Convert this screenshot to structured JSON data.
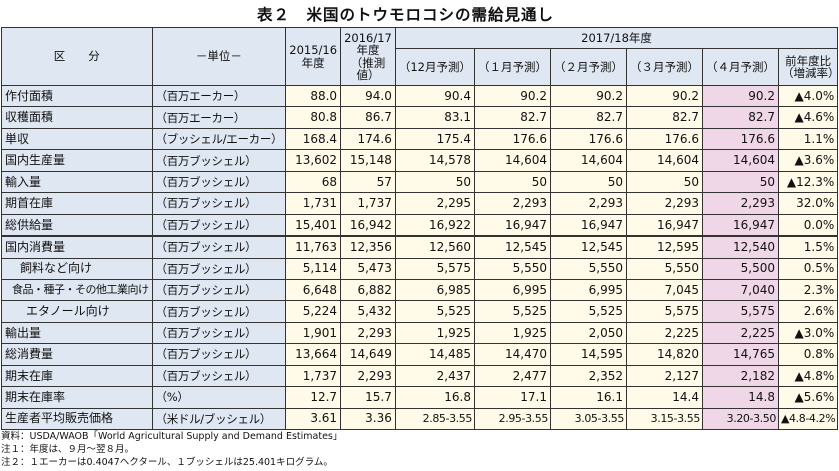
{
  "title": "表２　米国のトウモロコシの需給見通し",
  "header": {
    "category": "区　　分",
    "unit": "－単位－",
    "col1": "2015/16\n年度",
    "col2": "2016/17\n年度\n（推測値）",
    "forecast_group": "2017/18年度",
    "f1": "（12月予測）",
    "f2": "（１月予測）",
    "f3": "（２月予測）",
    "f4": "（３月予測）",
    "f5": "（４月予測）",
    "yoy": "前年度比\n（増減率）"
  },
  "rows": [
    {
      "item": "作付面積",
      "unit": "（百万エーカー）",
      "v": [
        "88.0",
        "94.0",
        "90.4",
        "90.2",
        "90.2",
        "90.2",
        "90.2"
      ],
      "chg": "▲4.0%"
    },
    {
      "item": "収穫面積",
      "unit": "（百万エーカー）",
      "v": [
        "80.8",
        "86.7",
        "83.1",
        "82.7",
        "82.7",
        "82.7",
        "82.7"
      ],
      "chg": "▲4.6%"
    },
    {
      "item": "単収",
      "unit": "（ブッシェル/エーカー）",
      "v": [
        "168.4",
        "174.6",
        "175.4",
        "176.6",
        "176.6",
        "176.6",
        "176.6"
      ],
      "chg": "1.1%"
    },
    {
      "item": "国内生産量",
      "unit": "（百万ブッシェル）",
      "v": [
        "13,602",
        "15,148",
        "14,578",
        "14,604",
        "14,604",
        "14,604",
        "14,604"
      ],
      "chg": "▲3.6%"
    },
    {
      "item": "輸入量",
      "unit": "（百万ブッシェル）",
      "v": [
        "68",
        "57",
        "50",
        "50",
        "50",
        "50",
        "50"
      ],
      "chg": "▲12.3%"
    },
    {
      "item": "期首在庫",
      "unit": "（百万ブッシェル）",
      "v": [
        "1,731",
        "1,737",
        "2,295",
        "2,293",
        "2,293",
        "2,293",
        "2,293"
      ],
      "chg": "32.0%"
    },
    {
      "item": "総供給量",
      "unit": "（百万ブッシェル）",
      "v": [
        "15,401",
        "16,942",
        "16,922",
        "16,947",
        "16,947",
        "16,947",
        "16,947"
      ],
      "chg": "0.0%"
    },
    {
      "item": "国内消費量",
      "unit": "（百万ブッシェル）",
      "v": [
        "11,763",
        "12,356",
        "12,560",
        "12,545",
        "12,545",
        "12,595",
        "12,540"
      ],
      "chg": "1.5%"
    },
    {
      "item": "飼料など向け",
      "unit": "（百万ブッシェル）",
      "v": [
        "5,114",
        "5,473",
        "5,575",
        "5,550",
        "5,550",
        "5,550",
        "5,500"
      ],
      "chg": "0.5%"
    },
    {
      "item": "食品・種子・その他工業向け",
      "unit": "（百万ブッシェル）",
      "v": [
        "6,648",
        "6,882",
        "6,985",
        "6,995",
        "6,995",
        "7,045",
        "7,040"
      ],
      "chg": "2.3%"
    },
    {
      "item": "エタノール向け",
      "unit": "（百万ブッシェル）",
      "v": [
        "5,224",
        "5,432",
        "5,525",
        "5,525",
        "5,525",
        "5,575",
        "5,575"
      ],
      "chg": "2.6%"
    },
    {
      "item": "輸出量",
      "unit": "（百万ブッシェル）",
      "v": [
        "1,901",
        "2,293",
        "1,925",
        "1,925",
        "2,050",
        "2,225",
        "2,225"
      ],
      "chg": "▲3.0%"
    },
    {
      "item": "総消費量",
      "unit": "（百万ブッシェル）",
      "v": [
        "13,664",
        "14,649",
        "14,485",
        "14,470",
        "14,595",
        "14,820",
        "14,765"
      ],
      "chg": "0.8%"
    },
    {
      "item": "期末在庫",
      "unit": "（百万ブッシェル）",
      "v": [
        "1,737",
        "2,293",
        "2,437",
        "2,477",
        "2,352",
        "2,127",
        "2,182"
      ],
      "chg": "▲4.8%"
    },
    {
      "item": "期末在庫率",
      "unit": "（%）",
      "v": [
        "12.7",
        "15.7",
        "16.8",
        "17.1",
        "16.1",
        "14.4",
        "14.8"
      ],
      "chg": "▲5.6%"
    },
    {
      "item": "生産者平均販売価格",
      "unit": "（米ドル/ブッシェル）",
      "v": [
        "3.61",
        "3.36",
        "2.85-3.55",
        "2.95-3.55",
        "3.05-3.55",
        "3.15-3.55",
        "3.20-3.50"
      ],
      "chg": "▲4.8-4.2%"
    }
  ],
  "notes": [
    "資料：USDA/WAOB「World Agricultural Supply and Demand Estimates」",
    "注１：年度は、９月～翌８月。",
    "注２：１エーカーは0.4047ヘクタール、１ブッシェルは25.401キログラム。"
  ],
  "colors": {
    "header_bg": "#dfe7f2",
    "value_bg": "#fffbe8",
    "latest_bg": "#f0d7e7"
  }
}
